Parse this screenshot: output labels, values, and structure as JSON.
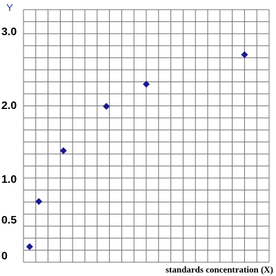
{
  "chart_data": {
    "type": "scatter",
    "title": "",
    "ylabel": "Y",
    "xlabel": "standards concentration (X)",
    "grid": true,
    "legend": "none",
    "y_ticks": [
      {
        "value": 0,
        "label": "0"
      },
      {
        "value": 0.5,
        "label": "0.5"
      },
      {
        "value": 1.0,
        "label": "1.0"
      },
      {
        "value": 2.0,
        "label": "2.0"
      },
      {
        "value": 3.0,
        "label": "3.0"
      }
    ],
    "ylim": [
      0,
      3.3
    ],
    "xlim": [
      0,
      20
    ],
    "series": [
      {
        "points": [
          {
            "x": 0.5,
            "y": 0.12
          },
          {
            "x": 1.25,
            "y": 0.72
          },
          {
            "x": 3.25,
            "y": 1.38
          },
          {
            "x": 6.75,
            "y": 1.98
          },
          {
            "x": 10.0,
            "y": 2.28
          },
          {
            "x": 18.0,
            "y": 2.68
          }
        ]
      }
    ],
    "colors": {
      "marker": "#1a1a8c",
      "grid": "#6e6e6e",
      "ylabel": "#2a3fa0"
    }
  }
}
